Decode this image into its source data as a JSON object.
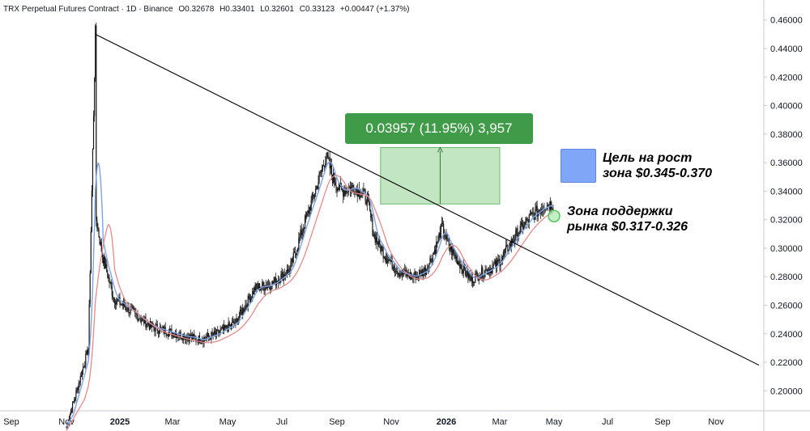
{
  "header": {
    "symbol": "TRX Perpetual Futures Contract",
    "interval": "1D",
    "exchange": "Binance",
    "open": "O0.32678",
    "high": "H0.33401",
    "low": "L0.32601",
    "close": "C0.33123",
    "change": "+0.00447 (+1.37%)"
  },
  "measure_label": "0.03957 (11.95%) 3,957",
  "annotations": {
    "target_line1": "Цель на рост",
    "target_line2": "зона $0.345-0.370",
    "support_line1": "Зона поддержки",
    "support_line2": "рынка $0.317-0.326"
  },
  "colors": {
    "background": "#ffffff",
    "candle": "#1a1a1a",
    "ma_fast": "#7ea3e8",
    "ma_slow": "#e58a8a",
    "measure_fill": "#8fd08f",
    "measure_box": "#3f9b48",
    "trendline": "#000000",
    "target_zone": "#7fa6f7",
    "support_marker": "#56c45c"
  },
  "chart_data": {
    "type": "line",
    "subtype": "candlestick",
    "x_axis_labels": [
      "Sep",
      "Nov",
      "2025",
      "Mar",
      "May",
      "Jul",
      "Sep",
      "Nov",
      "2026",
      "Mar",
      "May",
      "Jul",
      "Sep",
      "Nov"
    ],
    "bold_x_labels": [
      "2025",
      "2026"
    ],
    "y_ticks": [
      "0.20000",
      "0.22000",
      "0.24000",
      "0.26000",
      "0.28000",
      "0.30000",
      "0.32000",
      "0.34000",
      "0.36000",
      "0.38000",
      "0.40000",
      "0.42000",
      "0.44000",
      "0.46000"
    ],
    "ylim": [
      0.186,
      0.474
    ],
    "price_path": [
      {
        "x": "2024-11-01",
        "y": 0.175
      },
      {
        "x": "2024-11-15",
        "y": 0.205
      },
      {
        "x": "2024-11-26",
        "y": 0.23
      },
      {
        "x": "2024-12-04",
        "y": 0.45
      },
      {
        "x": "2024-12-05",
        "y": 0.32
      },
      {
        "x": "2024-12-12",
        "y": 0.295
      },
      {
        "x": "2024-12-25",
        "y": 0.265
      },
      {
        "x": "2025-01-15",
        "y": 0.255
      },
      {
        "x": "2025-02-05",
        "y": 0.245
      },
      {
        "x": "2025-03-05",
        "y": 0.24
      },
      {
        "x": "2025-04-01",
        "y": 0.236
      },
      {
        "x": "2025-04-20",
        "y": 0.24
      },
      {
        "x": "2025-05-10",
        "y": 0.248
      },
      {
        "x": "2025-06-01",
        "y": 0.272
      },
      {
        "x": "2025-06-20",
        "y": 0.275
      },
      {
        "x": "2025-07-10",
        "y": 0.285
      },
      {
        "x": "2025-07-25",
        "y": 0.315
      },
      {
        "x": "2025-08-10",
        "y": 0.345
      },
      {
        "x": "2025-08-20",
        "y": 0.365
      },
      {
        "x": "2025-08-27",
        "y": 0.35
      },
      {
        "x": "2025-09-05",
        "y": 0.34
      },
      {
        "x": "2025-09-20",
        "y": 0.343
      },
      {
        "x": "2025-10-05",
        "y": 0.335
      },
      {
        "x": "2025-10-12",
        "y": 0.31
      },
      {
        "x": "2025-10-25",
        "y": 0.295
      },
      {
        "x": "2025-11-10",
        "y": 0.283
      },
      {
        "x": "2025-11-25",
        "y": 0.28
      },
      {
        "x": "2025-12-10",
        "y": 0.285
      },
      {
        "x": "2025-12-20",
        "y": 0.3
      },
      {
        "x": "2025-12-27",
        "y": 0.315
      },
      {
        "x": "2026-01-03",
        "y": 0.302
      },
      {
        "x": "2026-01-15",
        "y": 0.29
      },
      {
        "x": "2026-01-28",
        "y": 0.278
      },
      {
        "x": "2026-02-10",
        "y": 0.283
      },
      {
        "x": "2026-02-25",
        "y": 0.288
      },
      {
        "x": "2026-03-08",
        "y": 0.298
      },
      {
        "x": "2026-03-20",
        "y": 0.31
      },
      {
        "x": "2026-04-05",
        "y": 0.322
      },
      {
        "x": "2026-04-20",
        "y": 0.33
      },
      {
        "x": "2026-04-30",
        "y": 0.331
      }
    ],
    "trendline": {
      "x1": "2024-12-04",
      "y1": 0.45,
      "x2": "2026-12-20",
      "y2": 0.218
    },
    "measure_range": {
      "x_start": "2025-10-20",
      "x_end": "2026-03-01",
      "y_low": 0.331,
      "y_high": 0.3706
    },
    "support_marker": {
      "x": "2026-05-01",
      "y": 0.3225
    }
  }
}
